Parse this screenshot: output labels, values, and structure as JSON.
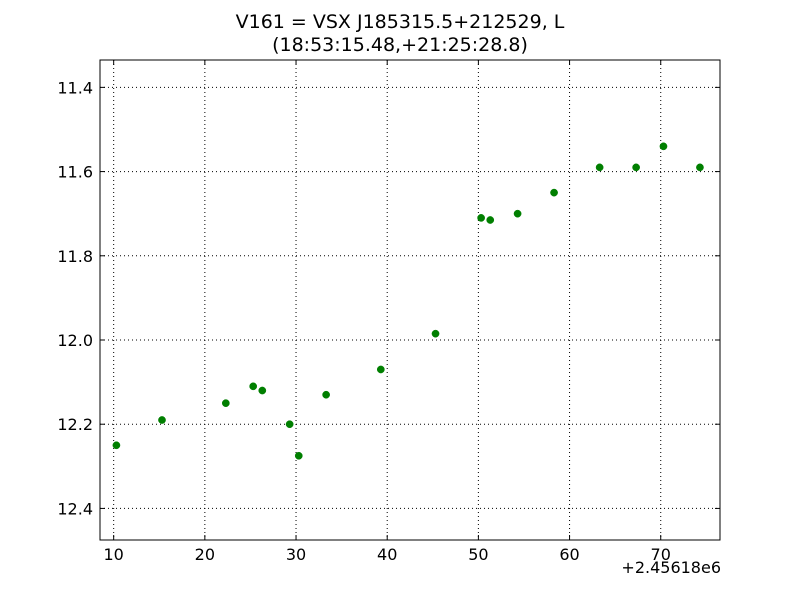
{
  "chart_data": {
    "type": "scatter",
    "title": "V161 = VSX J185315.5+212529, L",
    "subtitle": "(18:53:15.48,+21:25:28.8)",
    "xlabel": "",
    "ylabel": "",
    "x_offset_label": "+2.45618e6",
    "xlim": [
      8.5,
      76.5
    ],
    "ylim": [
      12.475,
      11.335
    ],
    "y_inverted": true,
    "grid": true,
    "marker_color": "#007f00",
    "x_ticks": [
      10,
      20,
      30,
      40,
      50,
      60,
      70
    ],
    "y_ticks": [
      11.4,
      11.6,
      11.8,
      12.0,
      12.2,
      12.4
    ],
    "x_tick_labels": [
      "10",
      "20",
      "30",
      "40",
      "50",
      "60",
      "70"
    ],
    "y_tick_labels": [
      "11.4",
      "11.6",
      "11.8",
      "12.0",
      "12.2",
      "12.4"
    ],
    "points": [
      {
        "x": 10.3,
        "y": 12.25
      },
      {
        "x": 15.3,
        "y": 12.19
      },
      {
        "x": 22.3,
        "y": 12.15
      },
      {
        "x": 25.3,
        "y": 12.11
      },
      {
        "x": 26.3,
        "y": 12.12
      },
      {
        "x": 29.3,
        "y": 12.2
      },
      {
        "x": 30.3,
        "y": 12.275
      },
      {
        "x": 33.3,
        "y": 12.13
      },
      {
        "x": 39.3,
        "y": 12.07
      },
      {
        "x": 45.3,
        "y": 11.985
      },
      {
        "x": 50.3,
        "y": 11.71
      },
      {
        "x": 51.3,
        "y": 11.715
      },
      {
        "x": 54.3,
        "y": 11.7
      },
      {
        "x": 58.3,
        "y": 11.65
      },
      {
        "x": 63.3,
        "y": 11.59
      },
      {
        "x": 67.3,
        "y": 11.59
      },
      {
        "x": 70.3,
        "y": 11.54
      },
      {
        "x": 74.3,
        "y": 11.59
      }
    ]
  }
}
